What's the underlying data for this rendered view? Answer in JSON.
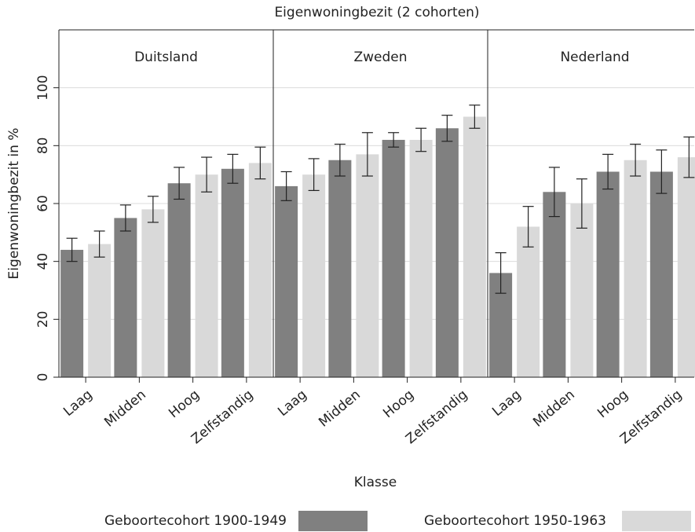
{
  "chart_data": {
    "type": "bar",
    "title": "Eigenwoningbezit (2 cohorten)",
    "x_label": "Klasse",
    "y_label": "Eigenwoningbezit in %",
    "categories": [
      "Laag",
      "Midden",
      "Hoog",
      "Zelfstandig"
    ],
    "ylim": [
      0,
      120
    ],
    "yticks": [
      0,
      20,
      40,
      60,
      80,
      100
    ],
    "grid": true,
    "series": [
      {
        "name": "Geboortecohort 1900-1949",
        "color": "#808080"
      },
      {
        "name": "Geboortecohort 1950-1963",
        "color": "#d9d9d9"
      }
    ],
    "panels": [
      {
        "title": "Duitsland",
        "values": [
          [
            44,
            55,
            67,
            72
          ],
          [
            46,
            58,
            70,
            74
          ]
        ],
        "errors": [
          [
            4,
            4.5,
            5.5,
            5
          ],
          [
            4.5,
            4.5,
            6,
            5.5
          ]
        ]
      },
      {
        "title": "Zweden",
        "values": [
          [
            66,
            75,
            82,
            86
          ],
          [
            70,
            77,
            82,
            90
          ]
        ],
        "errors": [
          [
            5,
            5.5,
            2.5,
            4.5
          ],
          [
            5.5,
            7.5,
            4,
            4
          ]
        ]
      },
      {
        "title": "Nederland",
        "values": [
          [
            36,
            64,
            71,
            71
          ],
          [
            52,
            60,
            75,
            76
          ]
        ],
        "errors": [
          [
            7,
            8.5,
            6,
            7.5
          ],
          [
            7,
            8.5,
            5.5,
            7
          ]
        ]
      }
    ]
  }
}
